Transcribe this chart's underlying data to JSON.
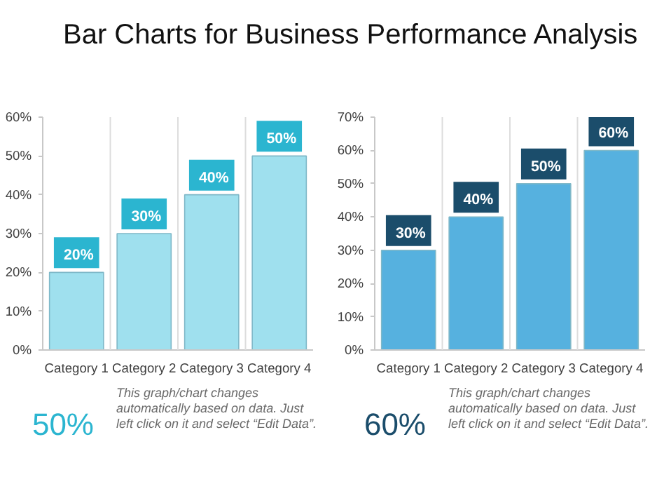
{
  "chart_data": [
    {
      "type": "bar",
      "title": "Bar Charts for Business Performance Analysis",
      "categories": [
        "Category 1",
        "Category 2",
        "Category 3",
        "Category 4"
      ],
      "series": [
        {
          "color": "#9fe0ee",
          "values": [
            20,
            30,
            40,
            50
          ],
          "value_labels": [
            "20%",
            "30%",
            "40%",
            "50%"
          ]
        }
      ],
      "ylim": [
        0,
        60
      ],
      "yticks": [
        {
          "value": 0,
          "label": "0%"
        },
        {
          "value": 10,
          "label": "10%"
        },
        {
          "value": 20,
          "label": "20%"
        },
        {
          "value": 30,
          "label": "30%"
        },
        {
          "value": 40,
          "label": "40%"
        },
        {
          "value": 50,
          "label": "50%"
        },
        {
          "value": 60,
          "label": "60%"
        }
      ],
      "grid": "x",
      "annotations": [
        "50%",
        "This graph/chart changes automatically based on data.  Just left click on it and select “Edit Data”."
      ]
    },
    {
      "type": "bar",
      "categories": [
        "Category 1",
        "Category 2",
        "Category 3",
        "Category 4"
      ],
      "series": [
        {
          "color": "#56b1df",
          "values": [
            30,
            40,
            50,
            60
          ],
          "value_labels": [
            "30%",
            "40%",
            "50%",
            "60%"
          ]
        }
      ],
      "ylim": [
        0,
        70
      ],
      "yticks": [
        {
          "value": 0,
          "label": "0%"
        },
        {
          "value": 10,
          "label": "10%"
        },
        {
          "value": 20,
          "label": "20%"
        },
        {
          "value": 30,
          "label": "30%"
        },
        {
          "value": 40,
          "label": "40%"
        },
        {
          "value": 50,
          "label": "50%"
        },
        {
          "value": 60,
          "label": "60%"
        },
        {
          "value": 70,
          "label": "70%"
        }
      ],
      "grid": "x",
      "annotations": [
        "60%",
        "This graph/chart changes automatically based on data.  Just left click on it and select “Edit Data”."
      ]
    }
  ]
}
